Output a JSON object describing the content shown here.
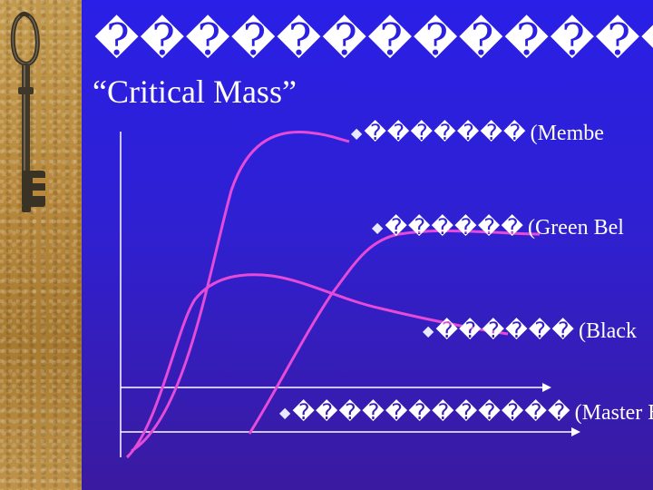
{
  "slide": {
    "title_line1": "����������������",
    "title_line2": "“Critical Mass”"
  },
  "levels": [
    {
      "name": "member",
      "boxes": "�������",
      "paren": "(Membe"
    },
    {
      "name": "green",
      "boxes": "������",
      "paren": "(Green Bel"
    },
    {
      "name": "black",
      "boxes": "������",
      "paren": "(Black"
    },
    {
      "name": "master",
      "boxes": "������������",
      "paren": "(Master Bl"
    }
  ],
  "colors": {
    "background": "#2f20d2",
    "curve": "#e64ad8",
    "axis": "#ffffff",
    "text": "#ffffff",
    "sidebar": "#b8893c"
  },
  "icons": {
    "bullet": "diamond-bullet-icon",
    "key": "old-key-icon"
  }
}
